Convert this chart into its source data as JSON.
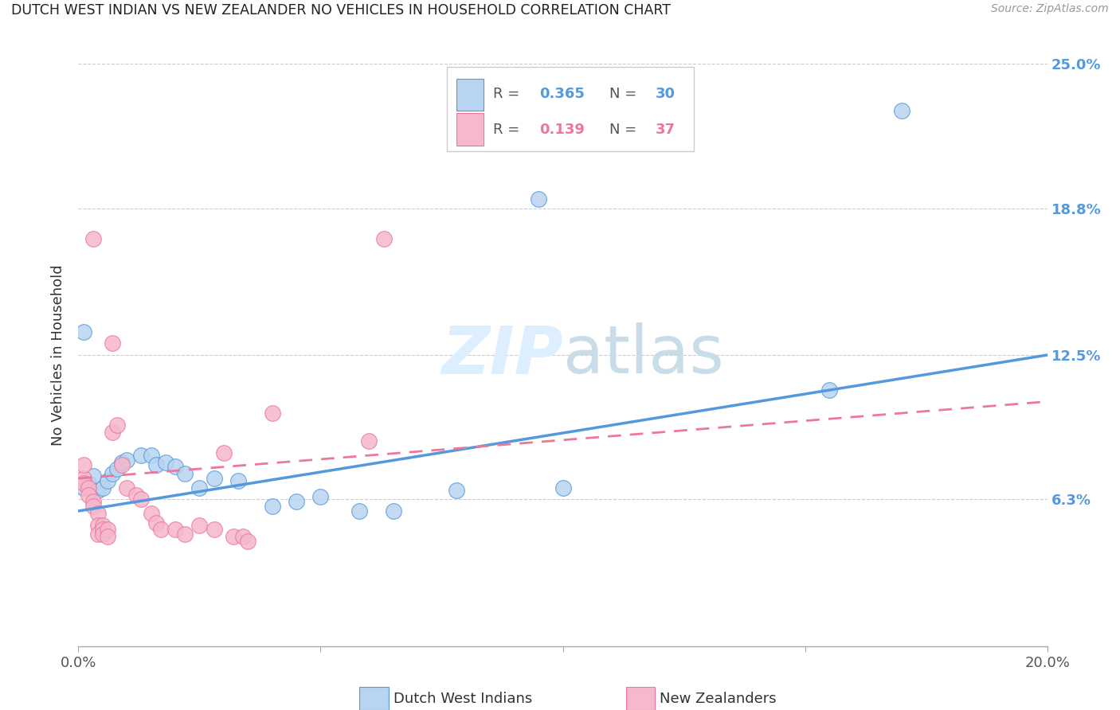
{
  "title": "DUTCH WEST INDIAN VS NEW ZEALANDER NO VEHICLES IN HOUSEHOLD CORRELATION CHART",
  "source": "Source: ZipAtlas.com",
  "ylabel": "No Vehicles in Household",
  "xlim": [
    0.0,
    0.2
  ],
  "ylim": [
    0.0,
    0.25
  ],
  "ytick_positions": [
    0.063,
    0.125,
    0.188,
    0.25
  ],
  "ytick_labels": [
    "6.3%",
    "12.5%",
    "18.8%",
    "25.0%"
  ],
  "R1": 0.365,
  "N1": 30,
  "R2": 0.139,
  "N2": 37,
  "color1": "#b8d4f0",
  "color2": "#f5b8cc",
  "line1_color": "#5599dd",
  "line2_color": "#ee7799",
  "watermark_color": "#ddeeff",
  "blue_points": [
    [
      0.001,
      0.135
    ],
    [
      0.001,
      0.068
    ],
    [
      0.002,
      0.07
    ],
    [
      0.003,
      0.073
    ],
    [
      0.004,
      0.067
    ],
    [
      0.005,
      0.068
    ],
    [
      0.006,
      0.071
    ],
    [
      0.007,
      0.074
    ],
    [
      0.008,
      0.076
    ],
    [
      0.009,
      0.079
    ],
    [
      0.01,
      0.08
    ],
    [
      0.013,
      0.082
    ],
    [
      0.015,
      0.082
    ],
    [
      0.016,
      0.078
    ],
    [
      0.018,
      0.079
    ],
    [
      0.02,
      0.077
    ],
    [
      0.022,
      0.074
    ],
    [
      0.025,
      0.068
    ],
    [
      0.028,
      0.072
    ],
    [
      0.033,
      0.071
    ],
    [
      0.04,
      0.06
    ],
    [
      0.045,
      0.062
    ],
    [
      0.05,
      0.064
    ],
    [
      0.058,
      0.058
    ],
    [
      0.065,
      0.058
    ],
    [
      0.078,
      0.067
    ],
    [
      0.095,
      0.192
    ],
    [
      0.1,
      0.068
    ],
    [
      0.155,
      0.11
    ],
    [
      0.17,
      0.23
    ]
  ],
  "pink_points": [
    [
      0.001,
      0.072
    ],
    [
      0.001,
      0.078
    ],
    [
      0.001,
      0.07
    ],
    [
      0.002,
      0.068
    ],
    [
      0.002,
      0.065
    ],
    [
      0.003,
      0.062
    ],
    [
      0.003,
      0.06
    ],
    [
      0.003,
      0.175
    ],
    [
      0.004,
      0.057
    ],
    [
      0.004,
      0.052
    ],
    [
      0.004,
      0.048
    ],
    [
      0.005,
      0.052
    ],
    [
      0.005,
      0.05
    ],
    [
      0.005,
      0.048
    ],
    [
      0.006,
      0.05
    ],
    [
      0.006,
      0.047
    ],
    [
      0.007,
      0.13
    ],
    [
      0.007,
      0.092
    ],
    [
      0.008,
      0.095
    ],
    [
      0.009,
      0.078
    ],
    [
      0.01,
      0.068
    ],
    [
      0.012,
      0.065
    ],
    [
      0.013,
      0.063
    ],
    [
      0.015,
      0.057
    ],
    [
      0.016,
      0.053
    ],
    [
      0.017,
      0.05
    ],
    [
      0.02,
      0.05
    ],
    [
      0.022,
      0.048
    ],
    [
      0.025,
      0.052
    ],
    [
      0.028,
      0.05
    ],
    [
      0.03,
      0.083
    ],
    [
      0.032,
      0.047
    ],
    [
      0.034,
      0.047
    ],
    [
      0.035,
      0.045
    ],
    [
      0.04,
      0.1
    ],
    [
      0.06,
      0.088
    ],
    [
      0.063,
      0.175
    ]
  ],
  "line1_x": [
    0.0,
    0.2
  ],
  "line1_y": [
    0.058,
    0.125
  ],
  "line2_x": [
    0.0,
    0.2
  ],
  "line2_y": [
    0.072,
    0.105
  ]
}
